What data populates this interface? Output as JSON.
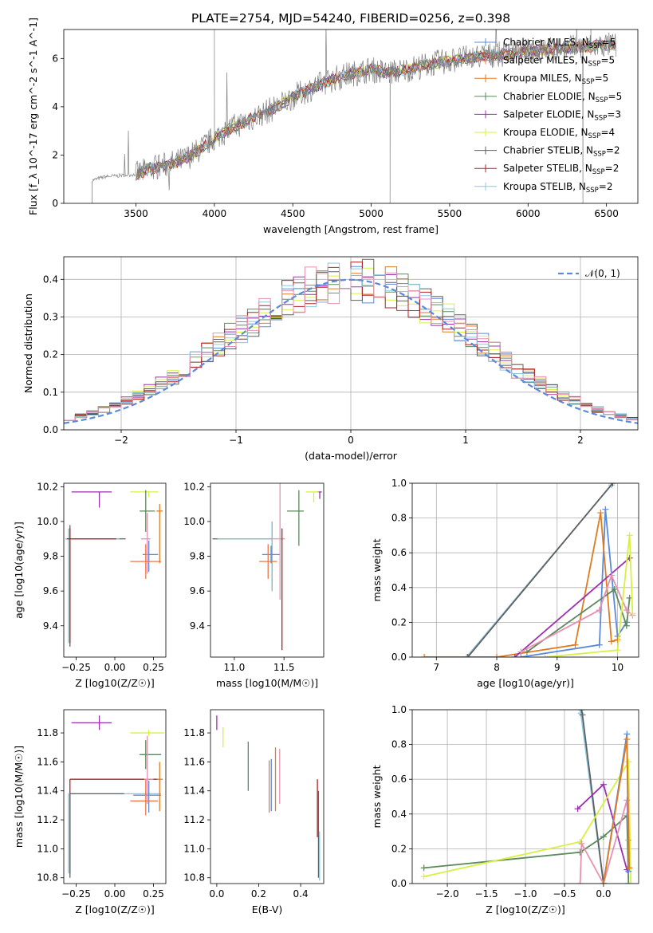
{
  "figure_title": "PLATE=2754, MJD=54240, FIBERID=0256, z=0.398",
  "colors": {
    "Chabrier MILES": "#5b8ad8",
    "Salpeter MILES": "#e8784a",
    "Kroupa MILES": "#e07b20",
    "Chabrier ELODIE": "#5c8a5c",
    "Salpeter ELODIE": "#9b30b0",
    "Kroupa ELODIE": "#d8f040",
    "Chabrier STELIB": "#606060",
    "Salpeter STELIB": "#b02020",
    "Kroupa STELIB": "#88c8e0",
    "pink": "#e890b0",
    "normal": "#5b8ad8"
  },
  "chart_data": [
    {
      "id": "spectrum",
      "type": "line",
      "title": "PLATE=2754, MJD=54240, FIBERID=0256, z=0.398",
      "xlabel": "wavelength [Angstrom, rest frame]",
      "ylabel": "Flux [f_λ 10^-17 erg cm^-2 s^-1 A^-1]",
      "xlim": [
        3040,
        6700
      ],
      "ylim": [
        0,
        7.2
      ],
      "xticks": [
        "3500",
        "4000",
        "4500",
        "5000",
        "5500",
        "6000",
        "6500"
      ],
      "yticks": [
        "0",
        "2",
        "4",
        "6"
      ],
      "grid": false,
      "legend_position": "top-right",
      "legend": [
        "Chabrier MILES, N_SSP=5",
        "Salpeter MILES, N_SSP=5",
        "Kroupa MILES, N_SSP=5",
        "Chabrier ELODIE, N_SSP=5",
        "Salpeter ELODIE, N_SSP=3",
        "Kroupa ELODIE, N_SSP=4",
        "Chabrier STELIB, N_SSP=2",
        "Salpeter STELIB, N_SSP=2",
        "Kroupa STELIB, N_SSP=2"
      ],
      "continuum": {
        "x": [
          3220,
          3300,
          3400,
          3500,
          3600,
          3700,
          3800,
          3900,
          4000,
          4100,
          4200,
          4300,
          4400,
          4500,
          4600,
          4700,
          4800,
          4900,
          5000,
          5100,
          5200,
          5300,
          5400,
          5500,
          5600,
          5700,
          5800,
          5900,
          6000,
          6100,
          6200,
          6300,
          6400,
          6500
        ],
        "y": [
          0.95,
          1.1,
          1.15,
          1.2,
          1.45,
          1.6,
          1.8,
          2.2,
          2.7,
          3.1,
          3.4,
          3.7,
          4.0,
          4.4,
          4.7,
          5.0,
          5.25,
          5.4,
          5.55,
          5.4,
          5.5,
          5.65,
          5.8,
          5.9,
          6.0,
          6.1,
          6.15,
          6.2,
          6.3,
          6.35,
          6.4,
          6.45,
          6.5,
          6.55
        ]
      }
    },
    {
      "id": "residual-histogram",
      "type": "line",
      "xlabel": "(data-model)/error",
      "ylabel": "Normed distribution",
      "xlim": [
        -2.5,
        2.5
      ],
      "ylim": [
        0,
        0.46
      ],
      "xticks": [
        "−2",
        "−1",
        "0",
        "1",
        "2"
      ],
      "yticks": [
        "0.0",
        "0.1",
        "0.2",
        "0.3",
        "0.4"
      ],
      "grid": true,
      "legend_position": "top-right",
      "legend": [
        "𝒩(0, 1)"
      ],
      "bin_width": 0.1
    },
    {
      "id": "age-vs-metallicity",
      "type": "scatter",
      "xlabel": "Z [log10(Z/Z☉)]",
      "ylabel": "age  [log10(age/yr)]",
      "xlim": [
        -0.33,
        0.33
      ],
      "ylim": [
        9.22,
        10.22
      ],
      "xticks": [
        "−0.25",
        "0.00",
        "0.25"
      ],
      "yticks": [
        "9.4",
        "9.6",
        "9.8",
        "10.0",
        "10.2"
      ],
      "grid": false,
      "points": [
        {
          "model": "Salpeter ELODIE",
          "x": -0.1,
          "xerr": [
            0.18,
            0.08
          ],
          "y": 10.17,
          "yerr": [
            0.09,
            0.0
          ]
        },
        {
          "model": "Kroupa ELODIE",
          "x": 0.22,
          "xerr": [
            0.12,
            0.06
          ],
          "y": 10.17,
          "yerr": [
            0.03,
            0.0
          ]
        },
        {
          "model": "Chabrier ELODIE",
          "x": 0.2,
          "xerr": [
            0.04,
            0.06
          ],
          "y": 10.06,
          "yerr": [
            0.12,
            0.12
          ]
        },
        {
          "model": "Kroupa MILES",
          "x": 0.29,
          "xerr": [
            0.02,
            0.02
          ],
          "y": 10.06,
          "yerr": [
            0.3,
            0.04
          ]
        },
        {
          "model": "Chabrier STELIB",
          "x": -0.29,
          "xerr": [
            0.02,
            0.36
          ],
          "y": 9.9,
          "yerr": [
            0.62,
            0.08
          ]
        },
        {
          "model": "Kroupa STELIB",
          "x": -0.3,
          "xerr": [
            0.02,
            0.33
          ],
          "y": 9.9,
          "yerr": [
            0.6,
            0.06
          ]
        },
        {
          "model": "Salpeter STELIB",
          "x": -0.29,
          "xerr": [
            0.02,
            0.3
          ],
          "y": 9.9,
          "yerr": [
            0.6,
            0.06
          ]
        },
        {
          "model": "Chabrier MILES",
          "x": 0.22,
          "xerr": [
            0.04,
            0.06
          ],
          "y": 9.81,
          "yerr": [
            0.1,
            0.08
          ]
        },
        {
          "model": "pink",
          "x": 0.21,
          "xerr": [
            0.04,
            0.02
          ],
          "y": 9.9,
          "yerr": [
            0.2,
            0.15
          ]
        },
        {
          "model": "Salpeter MILES",
          "x": 0.2,
          "xerr": [
            0.1,
            0.1
          ],
          "y": 9.77,
          "yerr": [
            0.1,
            0.1
          ]
        }
      ]
    },
    {
      "id": "age-vs-mass",
      "type": "scatter",
      "xlabel": "mass [log10(M/M☉)]",
      "ylabel": "",
      "xlim": [
        10.76,
        11.9
      ],
      "ylim": [
        9.22,
        10.22
      ],
      "xticks": [
        "11.0",
        "11.5"
      ],
      "yticks": [
        "9.4",
        "9.6",
        "9.8",
        "10.0",
        "10.2"
      ],
      "grid": false,
      "points": [
        {
          "model": "Salpeter ELODIE",
          "x": 11.86,
          "xerr": [
            0.03,
            0.02
          ],
          "y": 10.17,
          "yerr": [
            0.04,
            0.0
          ]
        },
        {
          "model": "Kroupa ELODIE",
          "x": 11.8,
          "xerr": [
            0.08,
            0.05
          ],
          "y": 10.17,
          "yerr": [
            0.06,
            0.0
          ]
        },
        {
          "model": "Chabrier ELODIE",
          "x": 11.65,
          "xerr": [
            0.12,
            0.05
          ],
          "y": 10.06,
          "yerr": [
            0.2,
            0.12
          ]
        },
        {
          "model": "Chabrier STELIB",
          "x": 11.38,
          "xerr": [
            0.6,
            0.0
          ],
          "y": 9.9,
          "yerr": [
            0.3,
            0.1
          ]
        },
        {
          "model": "Kroupa STELIB",
          "x": 11.38,
          "xerr": [
            0.55,
            0.0
          ],
          "y": 9.9,
          "yerr": [
            0.3,
            0.1
          ]
        },
        {
          "model": "Chabrier MILES",
          "x": 11.37,
          "xerr": [
            0.09,
            0.09
          ],
          "y": 9.81,
          "yerr": [
            0.05,
            0.05
          ]
        },
        {
          "model": "pink",
          "x": 11.46,
          "xerr": [
            0.1,
            0.05
          ],
          "y": 9.9,
          "yerr": [
            0.35,
            0.32
          ]
        },
        {
          "model": "Salpeter STELIB",
          "x": 11.48,
          "xerr": [
            0.0,
            0.0
          ],
          "y": 9.9,
          "yerr": [
            0.64,
            0.06
          ]
        },
        {
          "model": "Salpeter MILES",
          "x": 11.34,
          "xerr": [
            0.09,
            0.09
          ],
          "y": 9.77,
          "yerr": [
            0.1,
            0.1
          ]
        }
      ]
    },
    {
      "id": "weight-vs-age",
      "type": "line",
      "xlabel": "age  [log10(age/yr)]",
      "ylabel": "mass weight",
      "xlim": [
        6.6,
        10.35
      ],
      "ylim": [
        0,
        1.0
      ],
      "xticks": [
        "7",
        "8",
        "9",
        "10"
      ],
      "yticks": [
        "0.0",
        "0.2",
        "0.4",
        "0.6",
        "0.8",
        "1.0"
      ],
      "grid": true,
      "series": [
        {
          "model": "Kroupa STELIB",
          "x": [
            7.5,
            9.9,
            9.92
          ],
          "y": [
            0.0,
            0.99,
            1.0
          ]
        },
        {
          "model": "Chabrier STELIB",
          "x": [
            7.52,
            9.92
          ],
          "y": [
            0.0,
            1.0
          ]
        },
        {
          "model": "Chabrier MILES",
          "x": [
            8.4,
            9.7,
            9.8,
            10.0,
            10.15
          ],
          "y": [
            0.0,
            0.07,
            0.85,
            0.12,
            0.2
          ]
        },
        {
          "model": "Kroupa MILES",
          "x": [
            6.8,
            8.0,
            9.3,
            9.72,
            9.9,
            10.0
          ],
          "y": [
            0.0,
            0.0,
            0.07,
            0.83,
            0.09,
            0.1
          ]
        },
        {
          "model": "Salpeter ELODIE",
          "x": [
            8.3,
            10.2
          ],
          "y": [
            0.0,
            0.57
          ]
        },
        {
          "model": "Chabrier ELODIE",
          "x": [
            8.5,
            9.95,
            10.15,
            10.2
          ],
          "y": [
            0.03,
            0.39,
            0.18,
            0.34
          ]
        },
        {
          "model": "pink",
          "x": [
            8.4,
            9.7,
            9.9,
            10.15,
            10.25
          ],
          "y": [
            0.03,
            0.27,
            0.47,
            0.27,
            0.24
          ]
        },
        {
          "model": "Kroupa ELODIE",
          "x": [
            8.8,
            10.0,
            10.2,
            10.25
          ],
          "y": [
            0.0,
            0.04,
            0.7,
            0.25
          ]
        }
      ]
    },
    {
      "id": "mass-vs-metallicity",
      "type": "scatter",
      "xlabel": "Z [log10(Z/Z☉)]",
      "ylabel": "mass [log10(M/M☉)]",
      "xlim": [
        -0.33,
        0.33
      ],
      "ylim": [
        10.76,
        11.96
      ],
      "xticks": [
        "−0.25",
        "0.00",
        "0.25"
      ],
      "yticks": [
        "10.8",
        "11.0",
        "11.2",
        "11.4",
        "11.6",
        "11.8"
      ],
      "grid": false,
      "points": [
        {
          "model": "Salpeter ELODIE",
          "x": -0.1,
          "xerr": [
            0.18,
            0.08
          ],
          "y": 11.87,
          "yerr": [
            0.05,
            0.05
          ]
        },
        {
          "model": "Kroupa ELODIE",
          "x": 0.22,
          "xerr": [
            0.12,
            0.1
          ],
          "y": 11.8,
          "yerr": [
            0.02,
            0.02
          ]
        },
        {
          "model": "Chabrier ELODIE",
          "x": 0.2,
          "xerr": [
            0.04,
            0.1
          ],
          "y": 11.65,
          "yerr": [
            0.1,
            0.1
          ]
        },
        {
          "model": "Salpeter STELIB",
          "x": -0.29,
          "xerr": [
            0.0,
            0.57
          ],
          "y": 11.48,
          "yerr": [
            0.65,
            0.0
          ]
        },
        {
          "model": "Kroupa STELIB",
          "x": -0.3,
          "xerr": [
            0.0,
            0.6
          ],
          "y": 11.38,
          "yerr": [
            0.55,
            0.0
          ]
        },
        {
          "model": "Chabrier STELIB",
          "x": -0.29,
          "xerr": [
            0.0,
            0.35
          ],
          "y": 11.38,
          "yerr": [
            0.58,
            0.0
          ]
        },
        {
          "model": "Chabrier MILES",
          "x": 0.22,
          "xerr": [
            0.1,
            0.08
          ],
          "y": 11.37,
          "yerr": [
            0.12,
            0.1
          ]
        },
        {
          "model": "Salpeter MILES",
          "x": 0.2,
          "xerr": [
            0.1,
            0.08
          ],
          "y": 11.33,
          "yerr": [
            0.1,
            0.15
          ]
        },
        {
          "model": "pink",
          "x": 0.21,
          "xerr": [
            0.02,
            0.04
          ],
          "y": 11.48,
          "yerr": [
            0.17,
            0.3
          ]
        },
        {
          "model": "Kroupa MILES",
          "x": 0.29,
          "xerr": [
            0.02,
            0.02
          ],
          "y": 11.48,
          "yerr": [
            0.22,
            0.12
          ]
        }
      ]
    },
    {
      "id": "mass-vs-ebv",
      "type": "scatter",
      "xlabel": "E(B-V)",
      "ylabel": "",
      "xlim": [
        -0.03,
        0.51
      ],
      "ylim": [
        10.76,
        11.96
      ],
      "xticks": [
        "0.0",
        "0.2",
        "0.4"
      ],
      "yticks": [
        "10.8",
        "11.0",
        "11.2",
        "11.4",
        "11.6",
        "11.8"
      ],
      "grid": false,
      "points": [
        {
          "model": "Salpeter ELODIE",
          "x": 0.0,
          "y": 11.87,
          "yerr": [
            0.05,
            0.05
          ]
        },
        {
          "model": "Kroupa ELODIE",
          "x": 0.03,
          "y": 11.77,
          "yerr": [
            0.07,
            0.07
          ]
        },
        {
          "model": "Chabrier ELODIE",
          "x": 0.15,
          "y": 11.57,
          "yerr": [
            0.17,
            0.17
          ]
        },
        {
          "model": "Salpeter MILES",
          "x": 0.25,
          "y": 11.43,
          "yerr": [
            0.18,
            0.18
          ]
        },
        {
          "model": "Chabrier MILES",
          "x": 0.26,
          "y": 11.44,
          "yerr": [
            0.18,
            0.18
          ]
        },
        {
          "model": "Kroupa MILES",
          "x": 0.28,
          "y": 11.48,
          "yerr": [
            0.22,
            0.22
          ]
        },
        {
          "model": "pink",
          "x": 0.3,
          "y": 11.5,
          "yerr": [
            0.19,
            0.19
          ]
        },
        {
          "model": "Salpeter STELIB",
          "x": 0.48,
          "y": 11.28,
          "yerr": [
            0.2,
            0.2
          ]
        },
        {
          "model": "Chabrier STELIB",
          "x": 0.485,
          "y": 11.1,
          "yerr": [
            0.3,
            0.3
          ]
        },
        {
          "model": "Kroupa STELIB",
          "x": 0.49,
          "y": 10.95,
          "yerr": [
            0.17,
            0.17
          ]
        }
      ]
    },
    {
      "id": "weight-vs-metallicity",
      "type": "line",
      "xlabel": "Z [log10(Z/Z☉)]",
      "ylabel": "mass weight",
      "xlim": [
        -2.45,
        0.45
      ],
      "ylim": [
        0,
        1.0
      ],
      "xticks": [
        "−2.0",
        "−1.5",
        "−1.0",
        "−0.5",
        "0.0"
      ],
      "yticks": [
        "0.0",
        "0.2",
        "0.4",
        "0.6",
        "0.8",
        "1.0"
      ],
      "grid": true,
      "series": [
        {
          "model": "Kroupa STELIB",
          "x": [
            -0.3,
            -0.29,
            0.0
          ],
          "y": [
            1.0,
            0.98,
            0.0
          ]
        },
        {
          "model": "Chabrier STELIB",
          "x": [
            -0.28,
            -0.27,
            0.0
          ],
          "y": [
            1.0,
            0.97,
            0.0
          ]
        },
        {
          "model": "Salpeter ELODIE",
          "x": [
            -0.33,
            0.0,
            0.3
          ],
          "y": [
            0.43,
            0.57,
            0.08
          ]
        },
        {
          "model": "Chabrier ELODIE",
          "x": [
            -2.3,
            -0.3,
            0.0,
            0.3,
            0.32
          ],
          "y": [
            0.09,
            0.18,
            0.27,
            0.39,
            0.0
          ]
        },
        {
          "model": "Kroupa ELODIE",
          "x": [
            -2.3,
            -0.3,
            0.32,
            0.35
          ],
          "y": [
            0.04,
            0.24,
            0.7,
            0.0
          ]
        },
        {
          "model": "pink",
          "x": [
            -0.3,
            -0.28,
            0.0,
            0.3,
            0.32
          ],
          "y": [
            0.0,
            0.23,
            0.0,
            0.48,
            0.25
          ]
        },
        {
          "model": "Chabrier MILES",
          "x": [
            0.0,
            0.3,
            0.32
          ],
          "y": [
            0.0,
            0.86,
            0.07
          ]
        },
        {
          "model": "Kroupa MILES",
          "x": [
            0.0,
            0.3,
            0.33
          ],
          "y": [
            0.0,
            0.83,
            0.09
          ]
        }
      ]
    }
  ]
}
